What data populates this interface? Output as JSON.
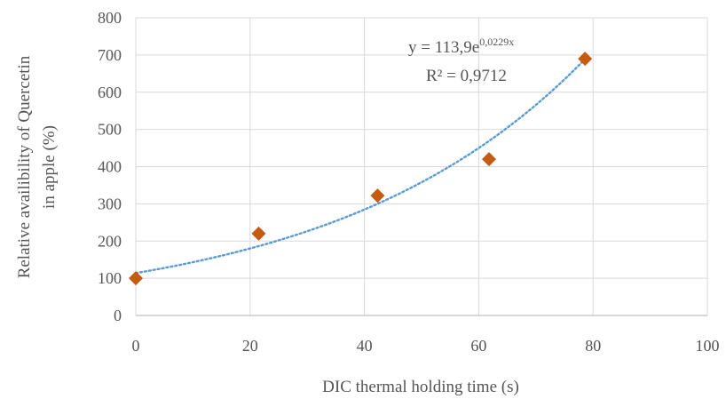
{
  "chart_data": {
    "type": "scatter",
    "xlabel": "DIC thermal holding time (s)",
    "ylabel": [
      "Relative availibility of Quercetin",
      "in apple (%)"
    ],
    "xlim": [
      0,
      100
    ],
    "ylim": [
      0,
      800
    ],
    "x_ticks": [
      0,
      20,
      40,
      60,
      80,
      100
    ],
    "y_ticks": [
      0,
      100,
      200,
      300,
      400,
      500,
      600,
      700,
      800
    ],
    "grid": true,
    "series": [
      {
        "marker": "diamond",
        "color": "#c55a11",
        "points": [
          {
            "x": 0,
            "y": 100
          },
          {
            "x": 21.5,
            "y": 220
          },
          {
            "x": 42.3,
            "y": 322
          },
          {
            "x": 61.8,
            "y": 420
          },
          {
            "x": 78.6,
            "y": 690
          }
        ]
      }
    ],
    "trendline": {
      "type": "exponential",
      "a": 113.9,
      "b": 0.0229,
      "x_range": [
        0,
        78.6
      ],
      "color": "#5b9bd5",
      "style": "dotted",
      "equation_base": "y = 113,9e",
      "equation_exp": "0,0229x",
      "r2_label": "R² = 0,9712"
    }
  }
}
